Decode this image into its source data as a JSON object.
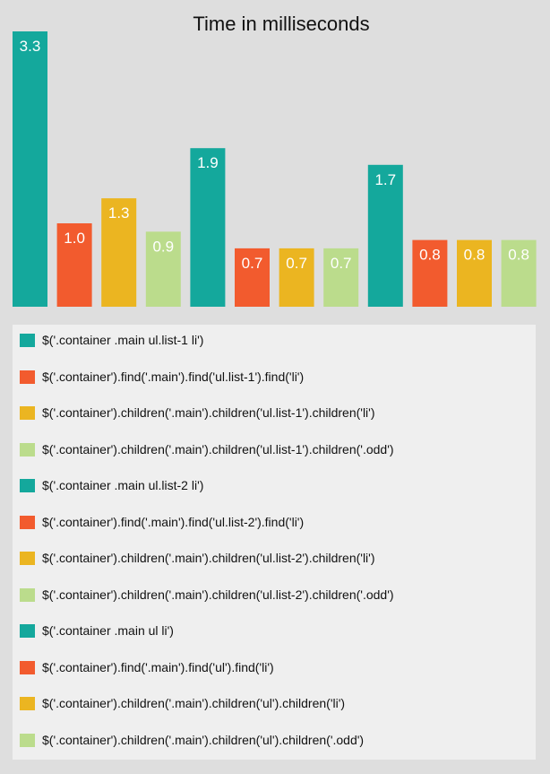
{
  "chart_data": {
    "type": "bar",
    "title": "Time in milliseconds",
    "xlabel": "",
    "ylabel": "",
    "ylim": [
      0,
      3.3
    ],
    "grid": false,
    "legend_position": "bottom",
    "series": [
      {
        "name": "$('.container .main ul.list-1 li')",
        "value": 3.3,
        "label": "3.3",
        "color": "#14a89c"
      },
      {
        "name": "$('.container').find('.main').find('ul.list-1').find('li')",
        "value": 1.0,
        "label": "1.0",
        "color": "#f25b2e"
      },
      {
        "name": "$('.container').children('.main').children('ul.list-1').children('li')",
        "value": 1.3,
        "label": "1.3",
        "color": "#ebb521"
      },
      {
        "name": "$('.container').children('.main').children('ul.list-1').children('.odd')",
        "value": 0.9,
        "label": "0.9",
        "color": "#bbdc8c"
      },
      {
        "name": "$('.container .main ul.list-2 li')",
        "value": 1.9,
        "label": "1.9",
        "color": "#14a89c"
      },
      {
        "name": "$('.container').find('.main').find('ul.list-2').find('li')",
        "value": 0.7,
        "label": "0.7",
        "color": "#f25b2e"
      },
      {
        "name": "$('.container').children('.main').children('ul.list-2').children('li')",
        "value": 0.7,
        "label": "0.7",
        "color": "#ebb521"
      },
      {
        "name": "$('.container').children('.main').children('ul.list-2').children('.odd')",
        "value": 0.7,
        "label": "0.7",
        "color": "#bbdc8c"
      },
      {
        "name": "$('.container .main ul li')",
        "value": 1.7,
        "label": "1.7",
        "color": "#14a89c"
      },
      {
        "name": "$('.container').find('.main').find('ul').find('li')",
        "value": 0.8,
        "label": "0.8",
        "color": "#f25b2e"
      },
      {
        "name": "$('.container').children('.main').children('ul').children('li')",
        "value": 0.8,
        "label": "0.8",
        "color": "#ebb521"
      },
      {
        "name": "$('.container').children('.main').children('ul').children('.odd')",
        "value": 0.8,
        "label": "0.8",
        "color": "#bbdc8c"
      }
    ]
  }
}
